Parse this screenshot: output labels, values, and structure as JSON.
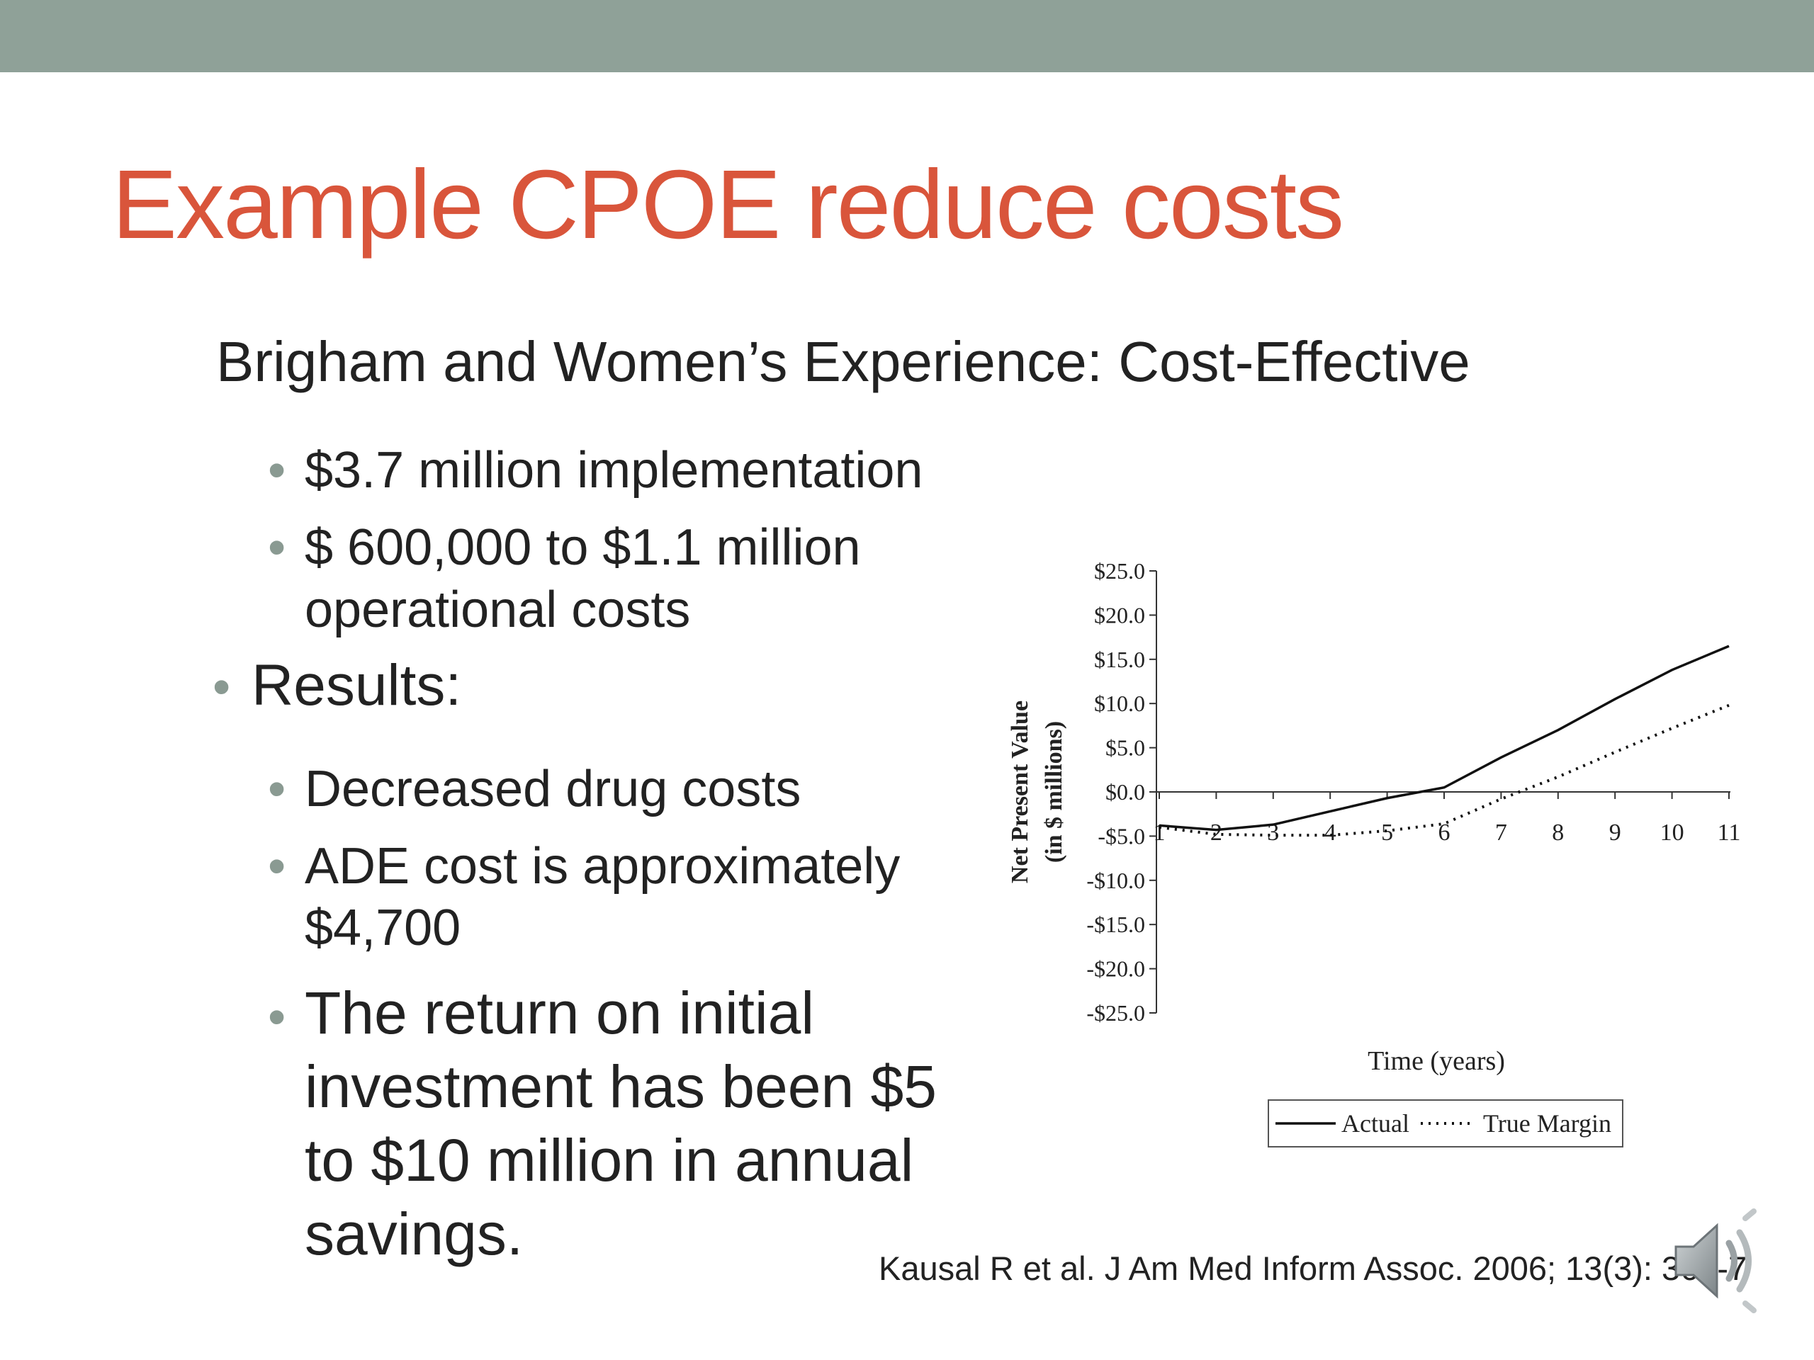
{
  "slide": {
    "title": "Example CPOE reduce costs",
    "subtitle": "Brigham and Women’s Experience: Cost-Effective",
    "bullets": {
      "b1": "$3.7 million implementation",
      "b2_line1": "$ 600,000 to $1.1 million",
      "b2_line2": "operational costs",
      "results": "Results:",
      "r1": "Decreased drug costs",
      "r2_line1": "ADE cost is approximately",
      "r2_line2": "$4,700",
      "r3_line1": "The return on initial",
      "r3_line2": "investment has been $5",
      "r3_line3": "to $10 million in annual",
      "r3_line4": "savings."
    },
    "bullet_glyph": "•",
    "citation": "Kausal R et al. J Am Med Inform Assoc. 2006; 13(3): 365-7",
    "colors": {
      "top_bar": "#8fa198",
      "title": "#d9553b",
      "bullet": "#8a9a92"
    },
    "icons": {
      "speaker": "speaker-icon"
    }
  },
  "chart_data": {
    "type": "line",
    "xlabel": "Time (years)",
    "ylabel_line1": "Net Present Value",
    "ylabel_line2": "(in $ millions)",
    "x": [
      1,
      2,
      3,
      4,
      5,
      6,
      7,
      8,
      9,
      10,
      11
    ],
    "x_tick_labels": [
      "1",
      "2",
      "3",
      "4",
      "5",
      "6",
      "7",
      "8",
      "9",
      "10",
      "11"
    ],
    "ylim": [
      -25,
      25
    ],
    "y_tick_values": [
      25,
      20,
      15,
      10,
      5,
      0,
      -5,
      -10,
      -15,
      -20,
      -25
    ],
    "y_tick_labels": [
      "$25.0",
      "$20.0",
      "$15.0",
      "$10.0",
      "$5.0",
      "$0.0",
      "-$5.0",
      "-$10.0",
      "-$15.0",
      "-$20.0",
      "-$25.0"
    ],
    "series": [
      {
        "name": "Actual",
        "style": "solid",
        "values": [
          -3.8,
          -4.3,
          -3.7,
          -2.2,
          -0.7,
          0.5,
          3.9,
          7.0,
          10.5,
          13.8,
          16.5
        ]
      },
      {
        "name": "True Margin",
        "style": "dotted",
        "values": [
          -4.0,
          -4.8,
          -4.9,
          -4.9,
          -4.4,
          -3.6,
          -0.8,
          1.7,
          4.5,
          7.2,
          9.8
        ]
      }
    ],
    "legend_position": "bottom-center",
    "grid": false
  }
}
